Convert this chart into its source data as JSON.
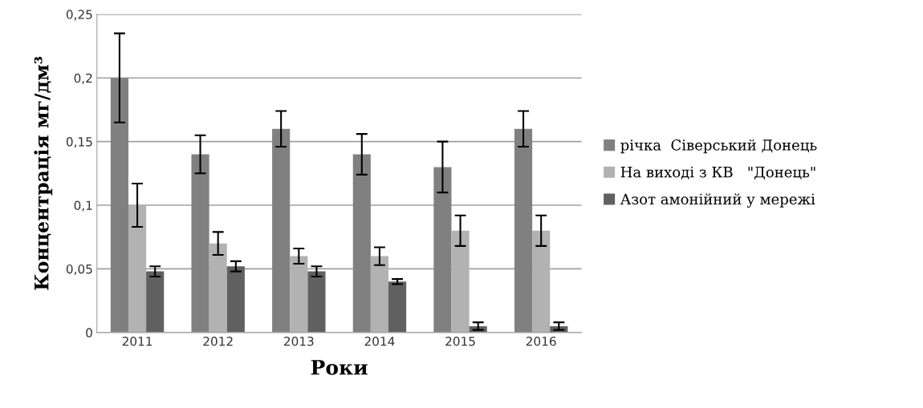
{
  "chart_data": {
    "type": "bar",
    "xlabel": "Роки",
    "ylabel": "Концентрація мг/дм³",
    "categories": [
      "2011",
      "2012",
      "2013",
      "2014",
      "2015",
      "2016"
    ],
    "series": [
      {
        "name": "річка  Сіверський Донець",
        "color": "#808080",
        "values": [
          0.2,
          0.14,
          0.16,
          0.14,
          0.13,
          0.16
        ],
        "errors": [
          0.035,
          0.015,
          0.014,
          0.016,
          0.02,
          0.014
        ]
      },
      {
        "name": "На виході з КВ   \"Донець\"",
        "color": "#b2b2b2",
        "values": [
          0.1,
          0.07,
          0.06,
          0.06,
          0.08,
          0.08
        ],
        "errors": [
          0.017,
          0.009,
          0.006,
          0.007,
          0.012,
          0.012
        ]
      },
      {
        "name": "Азот амонійний у мережі",
        "color": "#606060",
        "values": [
          0.048,
          0.052,
          0.048,
          0.04,
          0.005,
          0.005
        ],
        "errors": [
          0.004,
          0.004,
          0.004,
          0.002,
          0.003,
          0.003
        ]
      }
    ],
    "ylim": [
      0,
      0.25
    ],
    "yticks": [
      {
        "value": 0,
        "label": "0"
      },
      {
        "value": 0.05,
        "label": "0,05"
      },
      {
        "value": 0.1,
        "label": "0,1"
      },
      {
        "value": 0.15,
        "label": "0,15"
      },
      {
        "value": 0.2,
        "label": "0,2"
      },
      {
        "value": 0.25,
        "label": "0,25"
      }
    ],
    "grid": "y",
    "legend": "right"
  }
}
